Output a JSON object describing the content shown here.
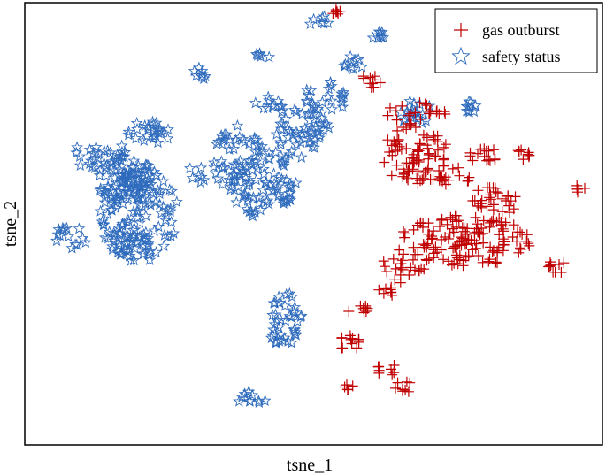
{
  "chart_data": {
    "type": "scatter",
    "title": "",
    "xlabel": "tsne_1",
    "ylabel": "tsne_2",
    "grid": false,
    "axis_ticks": false,
    "legend": {
      "placement": "top-right",
      "entries": [
        {
          "label": "gas outburst",
          "marker": "plus",
          "color": "#c00000"
        },
        {
          "label": "safety status",
          "marker": "star",
          "color": "#2e6bbd"
        }
      ]
    },
    "xlim": [
      0,
      100
    ],
    "ylim": [
      0,
      100
    ],
    "series": [
      {
        "name": "safety status",
        "marker": "star",
        "color": "#2e6bbd",
        "clusters": [
          {
            "x": 19,
            "y": 52,
            "rx": 7,
            "ry": 11,
            "n": 150
          },
          {
            "x": 12,
            "y": 66,
            "rx": 5,
            "ry": 3.5,
            "n": 30
          },
          {
            "x": 21,
            "y": 71,
            "rx": 4,
            "ry": 3,
            "n": 25
          },
          {
            "x": 7,
            "y": 47,
            "rx": 3,
            "ry": 3,
            "n": 15
          },
          {
            "x": 17,
            "y": 60,
            "rx": 6,
            "ry": 5,
            "n": 60
          },
          {
            "x": 41,
            "y": 60,
            "rx": 6,
            "ry": 9,
            "n": 90
          },
          {
            "x": 48,
            "y": 71,
            "rx": 5,
            "ry": 6,
            "n": 50
          },
          {
            "x": 33,
            "y": 62,
            "rx": 6,
            "ry": 3,
            "n": 25
          },
          {
            "x": 36,
            "y": 70,
            "rx": 4,
            "ry": 3,
            "n": 20
          },
          {
            "x": 52,
            "y": 79,
            "rx": 4,
            "ry": 4,
            "n": 25
          },
          {
            "x": 45,
            "y": 27,
            "rx": 3,
            "ry": 7,
            "n": 40
          },
          {
            "x": 39,
            "y": 9,
            "rx": 2.5,
            "ry": 2,
            "n": 12
          },
          {
            "x": 30,
            "y": 85,
            "rx": 1.5,
            "ry": 1.5,
            "n": 8
          },
          {
            "x": 41,
            "y": 89,
            "rx": 1.5,
            "ry": 1.5,
            "n": 6
          },
          {
            "x": 51,
            "y": 97,
            "rx": 1.8,
            "ry": 1.5,
            "n": 7
          },
          {
            "x": 61,
            "y": 94,
            "rx": 1.8,
            "ry": 1.5,
            "n": 8
          },
          {
            "x": 42,
            "y": 77,
            "rx": 3,
            "ry": 2.5,
            "n": 12
          },
          {
            "x": 57,
            "y": 87,
            "rx": 2,
            "ry": 2,
            "n": 10
          },
          {
            "x": 68,
            "y": 76,
            "rx": 3,
            "ry": 3,
            "n": 20
          },
          {
            "x": 77,
            "y": 77,
            "rx": 2,
            "ry": 2,
            "n": 10
          }
        ]
      },
      {
        "name": "gas outburst",
        "marker": "plus",
        "color": "#c00000",
        "clusters": [
          {
            "x": 68,
            "y": 66,
            "rx": 6,
            "ry": 7,
            "n": 80
          },
          {
            "x": 77,
            "y": 46,
            "rx": 12,
            "ry": 6,
            "n": 140
          },
          {
            "x": 66,
            "y": 40,
            "rx": 4,
            "ry": 4,
            "n": 25
          },
          {
            "x": 82,
            "y": 55,
            "rx": 4,
            "ry": 4,
            "n": 30
          },
          {
            "x": 75,
            "y": 61,
            "rx": 3,
            "ry": 2.5,
            "n": 15
          },
          {
            "x": 80,
            "y": 66,
            "rx": 3,
            "ry": 2,
            "n": 15
          },
          {
            "x": 87,
            "y": 66,
            "rx": 1.5,
            "ry": 1.2,
            "n": 8
          },
          {
            "x": 97,
            "y": 58,
            "rx": 1.2,
            "ry": 1.2,
            "n": 5
          },
          {
            "x": 93,
            "y": 40,
            "rx": 2,
            "ry": 2,
            "n": 10
          },
          {
            "x": 63,
            "y": 34,
            "rx": 1.5,
            "ry": 1.5,
            "n": 8
          },
          {
            "x": 58,
            "y": 30,
            "rx": 2,
            "ry": 1.2,
            "n": 8
          },
          {
            "x": 56,
            "y": 22,
            "rx": 2.5,
            "ry": 2,
            "n": 12
          },
          {
            "x": 63,
            "y": 16,
            "rx": 2,
            "ry": 1.5,
            "n": 8
          },
          {
            "x": 66,
            "y": 12,
            "rx": 2,
            "ry": 1.5,
            "n": 8
          },
          {
            "x": 56,
            "y": 12,
            "rx": 1.2,
            "ry": 1.2,
            "n": 5
          },
          {
            "x": 54,
            "y": 99,
            "rx": 1.2,
            "ry": 1,
            "n": 6
          },
          {
            "x": 60,
            "y": 83,
            "rx": 2,
            "ry": 2,
            "n": 10
          },
          {
            "x": 67,
            "y": 76,
            "rx": 4,
            "ry": 3,
            "n": 15
          },
          {
            "x": 72,
            "y": 75,
            "rx": 2,
            "ry": 2,
            "n": 8
          }
        ]
      }
    ]
  }
}
